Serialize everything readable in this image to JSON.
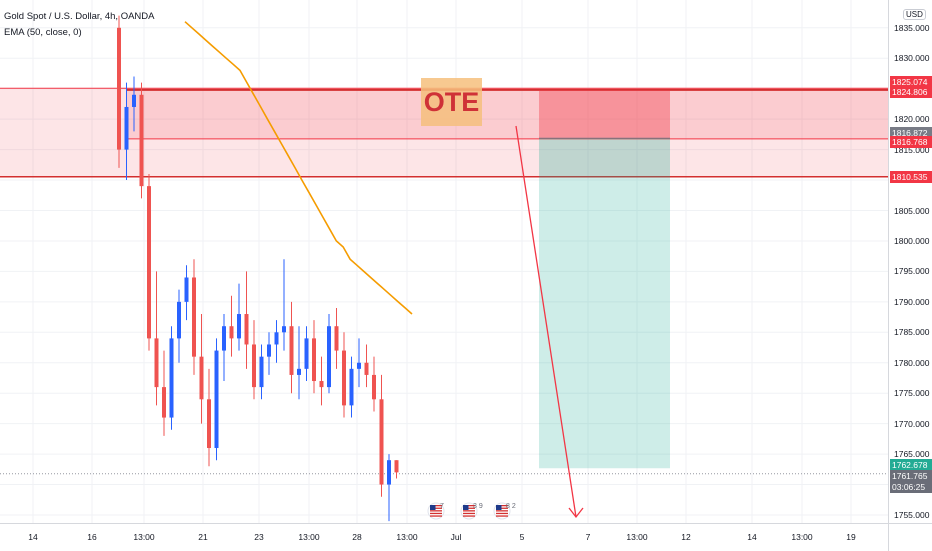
{
  "header": {
    "title": "Gold Spot / U.S. Dollar, 4h, OANDA",
    "indicator": "EMA (50, close, 0)"
  },
  "currency_button": "USD",
  "annotation_label": "OTE",
  "price_axis": {
    "ticks": [
      "1835.000",
      "1830.000",
      "1825.000",
      "1820.000",
      "1815.000",
      "1810.000",
      "1805.000",
      "1800.000",
      "1795.000",
      "1790.000",
      "1785.000",
      "1780.000",
      "1775.000",
      "1770.000",
      "1765.000",
      "1760.000",
      "1755.000"
    ],
    "badges": [
      {
        "text": "1825.074",
        "color": "#f23645"
      },
      {
        "text": "1824.806",
        "color": "#f23645"
      },
      {
        "text": "1816.872",
        "color": "#787b86"
      },
      {
        "text": "1816.768",
        "color": "#f23645"
      },
      {
        "text": "1810.535",
        "color": "#f23645"
      },
      {
        "text": "1762.678",
        "color": "#22ab94"
      },
      {
        "text": "1761.765",
        "color": "#6a6d78"
      },
      {
        "text": "03:06:25",
        "color": "#6a6d78"
      }
    ]
  },
  "time_axis": {
    "labels": [
      "14",
      "16",
      "13:00",
      "21",
      "23",
      "13:00",
      "28",
      "13:00",
      "Jul",
      "5",
      "7",
      "13:00",
      "12",
      "14",
      "13:00",
      "19"
    ]
  },
  "event_icons": [
    {
      "count": "7",
      "icon": "us-flag-icon"
    },
    {
      "count": "3 9",
      "icon": "us-flag-icon"
    },
    {
      "count": "8 2",
      "icon": "us-flag-icon"
    }
  ],
  "colors": {
    "up": "#2962ff",
    "down": "#ef5350",
    "ema": "#f59c00",
    "zone": "#f23645",
    "target": "#22ab94"
  },
  "chart_data": {
    "type": "candlestick",
    "symbol": "Gold Spot / U.S. Dollar",
    "interval": "4h",
    "ema_period": 50,
    "y_range": [
      1753,
      1836
    ],
    "candles": [
      [
        1835,
        1837,
        1812,
        1815
      ],
      [
        1815,
        1826,
        1810,
        1822
      ],
      [
        1822,
        1827,
        1818,
        1824
      ],
      [
        1824,
        1826,
        1807,
        1809
      ],
      [
        1809,
        1811,
        1782,
        1784
      ],
      [
        1784,
        1795,
        1773,
        1776
      ],
      [
        1776,
        1782,
        1768,
        1771
      ],
      [
        1771,
        1786,
        1769,
        1784
      ],
      [
        1784,
        1792,
        1780,
        1790
      ],
      [
        1790,
        1796,
        1787,
        1794
      ],
      [
        1794,
        1797,
        1778,
        1781
      ],
      [
        1781,
        1788,
        1770,
        1774
      ],
      [
        1774,
        1779,
        1763,
        1766
      ],
      [
        1766,
        1784,
        1764,
        1782
      ],
      [
        1782,
        1788,
        1777,
        1786
      ],
      [
        1786,
        1791,
        1781,
        1784
      ],
      [
        1784,
        1793,
        1782,
        1788
      ],
      [
        1788,
        1795,
        1779,
        1783
      ],
      [
        1783,
        1787,
        1774,
        1776
      ],
      [
        1776,
        1783,
        1774,
        1781
      ],
      [
        1781,
        1785,
        1778,
        1783
      ],
      [
        1783,
        1787,
        1780,
        1785
      ],
      [
        1785,
        1797,
        1782,
        1786
      ],
      [
        1786,
        1790,
        1775,
        1778
      ],
      [
        1778,
        1786,
        1774,
        1779
      ],
      [
        1779,
        1786,
        1777,
        1784
      ],
      [
        1784,
        1787,
        1775,
        1777
      ],
      [
        1777,
        1781,
        1773,
        1776
      ],
      [
        1776,
        1788,
        1775,
        1786
      ],
      [
        1786,
        1789,
        1779,
        1782
      ],
      [
        1782,
        1785,
        1771,
        1773
      ],
      [
        1773,
        1781,
        1771,
        1779
      ],
      [
        1779,
        1784,
        1776,
        1780
      ],
      [
        1780,
        1783,
        1776,
        1778
      ],
      [
        1778,
        1781,
        1772,
        1774
      ],
      [
        1774,
        1778,
        1758,
        1760
      ],
      [
        1760,
        1765,
        1754,
        1764
      ],
      [
        1764,
        1764,
        1761,
        1762
      ]
    ],
    "ema_values": [
      1836,
      1835,
      1834,
      1833,
      1832,
      1831,
      1830,
      1829,
      1828,
      1826,
      1824,
      1822,
      1820,
      1818,
      1816,
      1814,
      1812,
      1810,
      1808,
      1806,
      1804,
      1802,
      1800,
      1799,
      1797,
      1796,
      1795,
      1794,
      1793,
      1792,
      1791,
      1790,
      1789,
      1788
    ],
    "zones": {
      "outer_top": 1825.074,
      "outer_bottom": 1810.535,
      "inner_top": 1824.806,
      "inner_line": 1816.768,
      "entry": 1816.872,
      "target": 1762.678,
      "current_price": 1761.765
    },
    "projection_arrow": {
      "from_price": 1815.5,
      "to_price": 1754.5
    }
  }
}
